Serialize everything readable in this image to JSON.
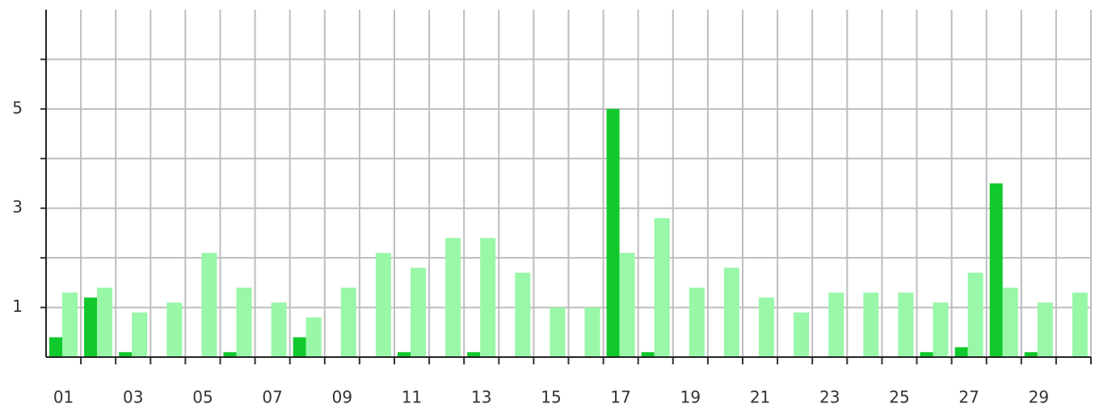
{
  "chart_data": {
    "type": "bar",
    "categories": [
      "01",
      null,
      "03",
      null,
      "05",
      null,
      "07",
      null,
      "09",
      null,
      "11",
      null,
      "13",
      null,
      "15",
      null,
      "17",
      null,
      "19",
      null,
      "21",
      null,
      "23",
      null,
      "25",
      null,
      "27",
      null,
      "29",
      null
    ],
    "series": [
      {
        "color": "#11c92d",
        "values": [
          0.4,
          1.2,
          0.1,
          0,
          0,
          0.1,
          0,
          0.4,
          0,
          0,
          0.1,
          0,
          0.1,
          0,
          0,
          0,
          5,
          0.1,
          0,
          0,
          0,
          0,
          0,
          0,
          0,
          0.1,
          0.2,
          3.5,
          0.1,
          0
        ]
      },
      {
        "color": "#99f7a8",
        "values": [
          1.3,
          1.4,
          0.9,
          1.1,
          2.1,
          1.4,
          1.1,
          0.8,
          1.4,
          2.1,
          1.8,
          2.4,
          2.4,
          1.7,
          1.0,
          1.0,
          2.1,
          2.8,
          1.4,
          1.8,
          1.2,
          0.9,
          1.3,
          1.3,
          1.3,
          1.1,
          1.7,
          1.4,
          1.1,
          1.3
        ]
      }
    ],
    "ylim": [
      0,
      7
    ],
    "yticks": [
      1,
      3,
      5
    ],
    "minor_yticks": [
      2,
      4,
      6
    ],
    "grid": true
  }
}
